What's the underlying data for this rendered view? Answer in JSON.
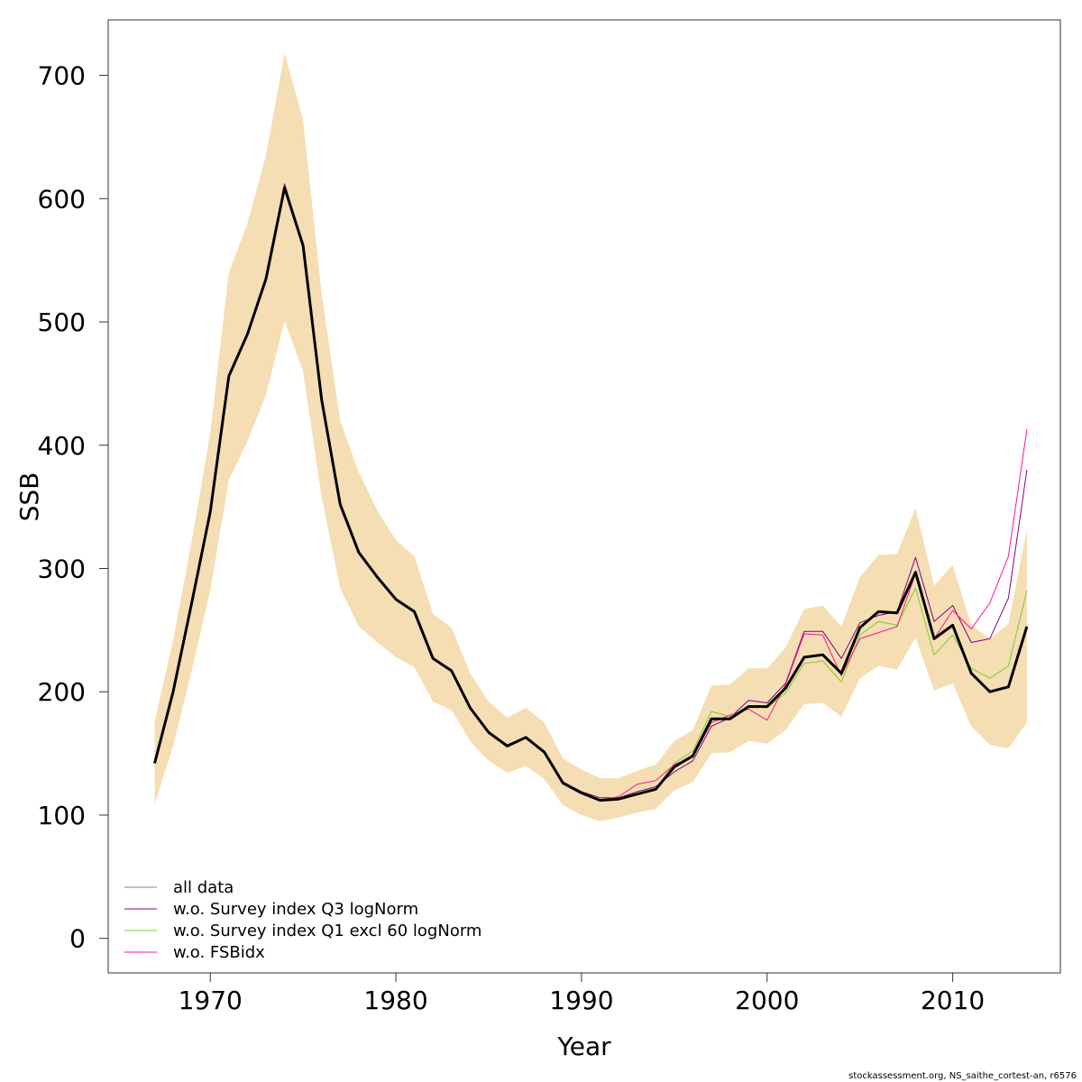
{
  "chart_data": {
    "type": "line",
    "title": "",
    "xlabel": "Year",
    "ylabel": "SSB",
    "xlim": [
      1964.5,
      2015.8
    ],
    "ylim": [
      -28,
      745
    ],
    "xticks": [
      1970,
      1980,
      1990,
      2000,
      2010
    ],
    "yticks": [
      0,
      100,
      200,
      300,
      400,
      500,
      600,
      700
    ],
    "grid": false,
    "legend_position": "bottom-left",
    "band_color": "#f5deb3",
    "x": [
      1967,
      1968,
      1969,
      1970,
      1971,
      1972,
      1973,
      1974,
      1975,
      1976,
      1977,
      1978,
      1979,
      1980,
      1981,
      1982,
      1983,
      1984,
      1985,
      1986,
      1987,
      1988,
      1989,
      1990,
      1991,
      1992,
      1993,
      1994,
      1995,
      1996,
      1997,
      1998,
      1999,
      2000,
      2001,
      2002,
      2003,
      2004,
      2005,
      2006,
      2007,
      2008,
      2009,
      2010,
      2011,
      2012,
      2013,
      2014
    ],
    "band_upper": [
      176,
      242,
      322,
      410,
      540,
      580,
      635,
      718,
      664,
      523,
      420,
      378,
      347,
      323,
      310,
      263,
      252,
      215,
      192,
      179,
      187,
      175,
      146,
      137,
      130,
      130,
      136,
      141,
      160,
      169,
      205,
      206,
      219,
      219,
      236,
      267,
      270,
      253,
      293,
      311,
      312,
      349,
      286,
      303,
      254,
      243,
      255,
      332
    ],
    "band_lower": [
      109,
      156,
      217,
      282,
      372,
      403,
      441,
      501,
      460,
      358,
      284,
      253,
      240,
      228,
      220,
      192,
      185,
      160,
      144,
      134,
      140,
      129,
      108,
      100,
      95,
      98,
      102,
      105,
      120,
      127,
      150,
      151,
      160,
      158,
      169,
      190,
      191,
      180,
      211,
      221,
      218,
      244,
      201,
      207,
      172,
      157,
      154,
      175
    ],
    "series": [
      {
        "name": "all data",
        "color": "#000000",
        "width": 3,
        "values": [
          142,
          200,
          272,
          346,
          456,
          490,
          535,
          609,
          562,
          437,
          352,
          313,
          293,
          275,
          265,
          227,
          217,
          187,
          167,
          156,
          163,
          151,
          126,
          118,
          112,
          113,
          117,
          121,
          139,
          148,
          178,
          178,
          188,
          188,
          203,
          228,
          230,
          215,
          252,
          265,
          264,
          297,
          243,
          254,
          215,
          200,
          204,
          253
        ]
      },
      {
        "name": "w.o. Survey index Q3 logNorm",
        "color": "#800080",
        "width": 1,
        "values": [
          142,
          200,
          272,
          346,
          456,
          490,
          535,
          612,
          562,
          437,
          352,
          313,
          293,
          275,
          265,
          227,
          218,
          188,
          167,
          157,
          163,
          152,
          127,
          119,
          114,
          114,
          119,
          123,
          135,
          144,
          172,
          179,
          193,
          191,
          207,
          249,
          249,
          227,
          256,
          262,
          265,
          309,
          257,
          270,
          240,
          243,
          276,
          380
        ]
      },
      {
        "name": "w.o. Survey index Q1 excl 60 logNorm",
        "color": "#7ccd2a",
        "width": 1,
        "values": [
          142,
          200,
          272,
          346,
          456,
          490,
          535,
          609,
          562,
          437,
          352,
          313,
          293,
          275,
          265,
          227,
          217,
          187,
          167,
          156,
          163,
          151,
          126,
          118,
          112,
          113,
          117,
          121,
          142,
          152,
          184,
          180,
          188,
          187,
          199,
          223,
          225,
          208,
          246,
          257,
          254,
          284,
          230,
          246,
          219,
          211,
          221,
          282
        ]
      },
      {
        "name": "w.o. FSBidx",
        "color": "#ff1493",
        "width": 1,
        "values": [
          142,
          200,
          272,
          346,
          456,
          490,
          535,
          609,
          562,
          437,
          352,
          313,
          293,
          275,
          265,
          227,
          217,
          187,
          167,
          156,
          163,
          151,
          126,
          118,
          112,
          115,
          125,
          128,
          141,
          147,
          175,
          181,
          186,
          177,
          206,
          247,
          246,
          213,
          243,
          248,
          253,
          296,
          243,
          266,
          251,
          272,
          310,
          413
        ]
      }
    ]
  },
  "footer": "stockassessment.org, NS_saithe_cortest-an, r6576"
}
